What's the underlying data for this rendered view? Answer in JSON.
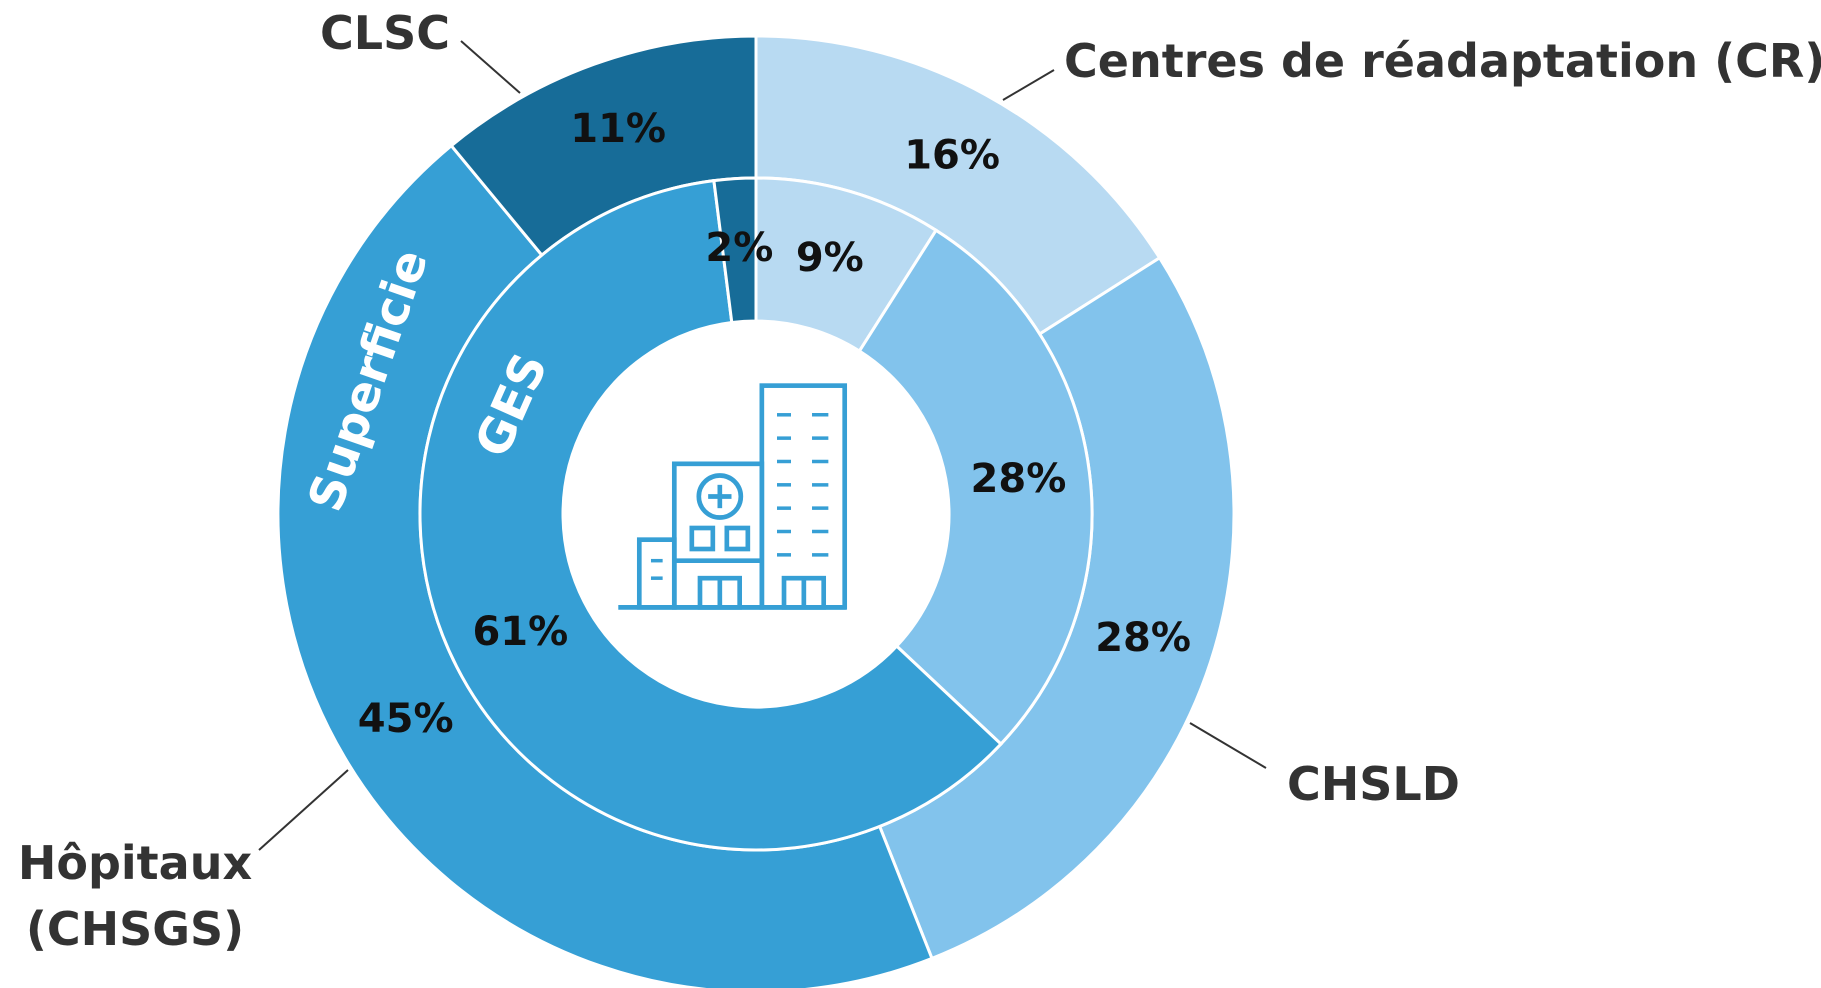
{
  "chart_data": {
    "type": "donut",
    "categories": [
      "Centres de réadaptation (CR)",
      "CHSLD",
      "Hôpitaux (CHSGS)",
      "CLSC"
    ],
    "colors": [
      "#b8daf2",
      "#82c3ec",
      "#369fd5",
      "#176c98"
    ],
    "series": [
      {
        "name": "Superficie",
        "values": [
          16,
          28,
          45,
          11
        ],
        "value_labels": [
          "16%",
          "28%",
          "45%",
          "11%"
        ]
      },
      {
        "name": "GES",
        "values": [
          9,
          28,
          61,
          2
        ],
        "value_labels": [
          "9%",
          "28%",
          "61%",
          "2%"
        ]
      }
    ]
  }
}
